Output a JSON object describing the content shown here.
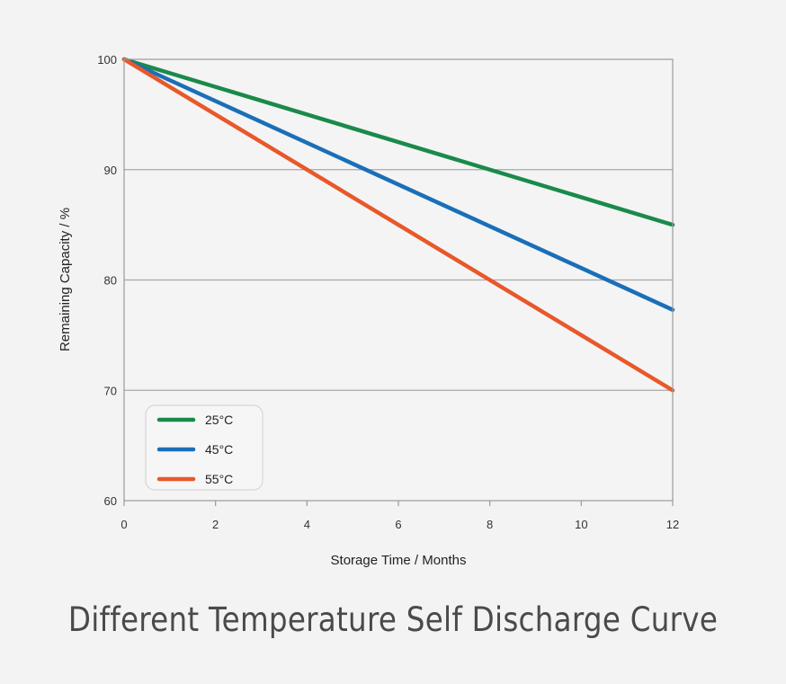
{
  "chart_data": {
    "type": "line",
    "title": "Different Temperature Self Discharge Curve",
    "xlabel": "Storage Time / Months",
    "ylabel": "Remaining Capacity / %",
    "xlim": [
      0,
      12
    ],
    "ylim": [
      60,
      100
    ],
    "xticks": [
      0,
      2,
      4,
      6,
      8,
      10,
      12
    ],
    "yticks": [
      60,
      70,
      80,
      90,
      100
    ],
    "grid": "horizontal",
    "legend_position": "bottom-left",
    "series": [
      {
        "name": "25°C",
        "color": "#1a8a4a",
        "x": [
          0,
          12
        ],
        "values": [
          100,
          85
        ]
      },
      {
        "name": "45°C",
        "color": "#1a6fb8",
        "x": [
          0,
          12
        ],
        "values": [
          100,
          77.3
        ]
      },
      {
        "name": "55°C",
        "color": "#e8582a",
        "x": [
          0,
          12
        ],
        "values": [
          100,
          70
        ]
      }
    ]
  }
}
